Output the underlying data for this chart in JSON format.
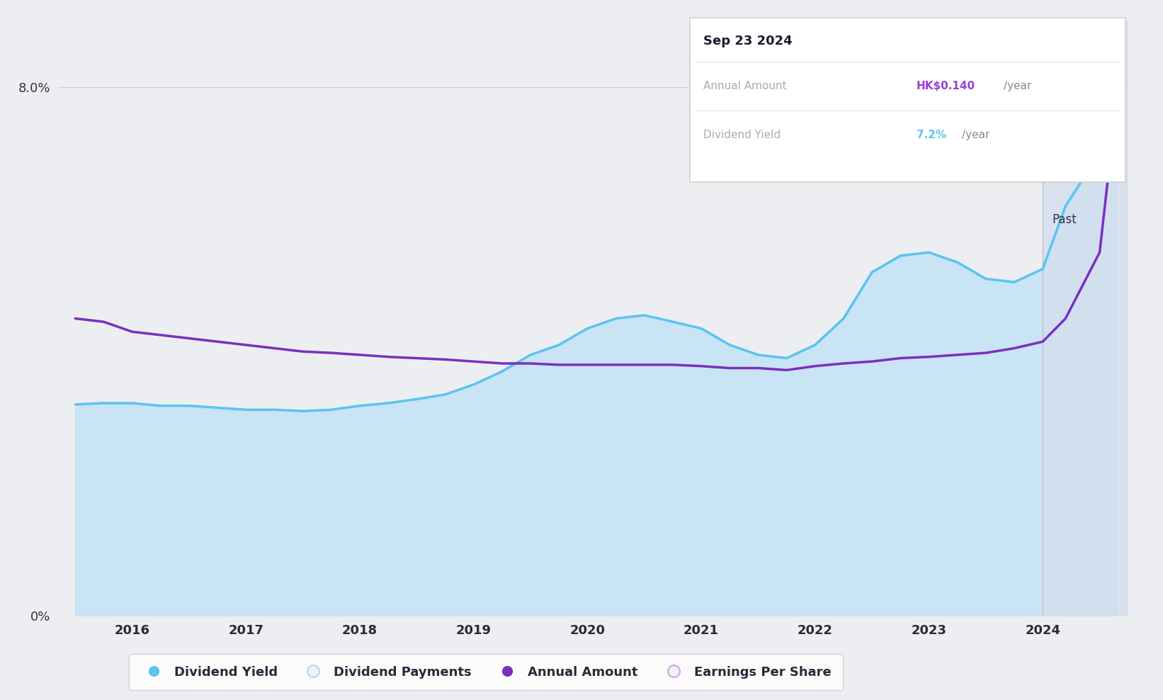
{
  "bg_color": "#eceef2",
  "plot_bg_color": "#eceef2",
  "years_x": [
    2015.5,
    2015.75,
    2016.0,
    2016.25,
    2016.5,
    2016.75,
    2017.0,
    2017.25,
    2017.5,
    2017.75,
    2018.0,
    2018.25,
    2018.5,
    2018.75,
    2019.0,
    2019.25,
    2019.5,
    2019.75,
    2020.0,
    2020.25,
    2020.5,
    2020.75,
    2021.0,
    2021.25,
    2021.5,
    2021.75,
    2022.0,
    2022.25,
    2022.5,
    2022.75,
    2023.0,
    2023.25,
    2023.5,
    2023.75,
    2024.0,
    2024.2,
    2024.5,
    2024.65
  ],
  "dividend_yield": [
    3.2,
    3.22,
    3.22,
    3.18,
    3.18,
    3.15,
    3.12,
    3.12,
    3.1,
    3.12,
    3.18,
    3.22,
    3.28,
    3.35,
    3.5,
    3.7,
    3.95,
    4.1,
    4.35,
    4.5,
    4.55,
    4.45,
    4.35,
    4.1,
    3.95,
    3.9,
    4.1,
    4.5,
    5.2,
    5.45,
    5.5,
    5.35,
    5.1,
    5.05,
    5.25,
    6.2,
    7.0,
    7.2
  ],
  "annual_amount": [
    4.5,
    4.45,
    4.3,
    4.25,
    4.2,
    4.15,
    4.1,
    4.05,
    4.0,
    3.98,
    3.95,
    3.92,
    3.9,
    3.88,
    3.85,
    3.82,
    3.82,
    3.8,
    3.8,
    3.8,
    3.8,
    3.8,
    3.78,
    3.75,
    3.75,
    3.72,
    3.78,
    3.82,
    3.85,
    3.9,
    3.92,
    3.95,
    3.98,
    4.05,
    4.15,
    4.5,
    5.5,
    7.8
  ],
  "future_shade_start": 2024.0,
  "xlim_left": 2015.35,
  "xlim_right": 2024.75,
  "ylim": [
    0,
    9.0
  ],
  "ytick_top": 8.0,
  "xticks": [
    2016,
    2017,
    2018,
    2019,
    2020,
    2021,
    2022,
    2023,
    2024
  ],
  "line_blue_color": "#5bc4f0",
  "line_purple_color": "#7b2fbe",
  "fill_blue_color": "#c8e4f5",
  "fill_future_color": "#d0dff0",
  "tooltip_date": "Sep 23 2024",
  "tooltip_annual_label": "Annual Amount",
  "tooltip_annual_value": "HK$0.140",
  "tooltip_yield_label": "Dividend Yield",
  "tooltip_yield_value": "7.2%",
  "tooltip_purple_color": "#9b3fd4",
  "tooltip_blue_color": "#5bc4f0",
  "past_label": "Past",
  "legend_items": [
    {
      "label": "Dividend Yield",
      "marker_color": "#5bc4f0",
      "ring": false
    },
    {
      "label": "Dividend Payments",
      "marker_color": "#b8dff0",
      "ring": true
    },
    {
      "label": "Annual Amount",
      "marker_color": "#7b2fbe",
      "ring": false
    },
    {
      "label": "Earnings Per Share",
      "marker_color": "#e0a8e0",
      "ring": true
    }
  ]
}
